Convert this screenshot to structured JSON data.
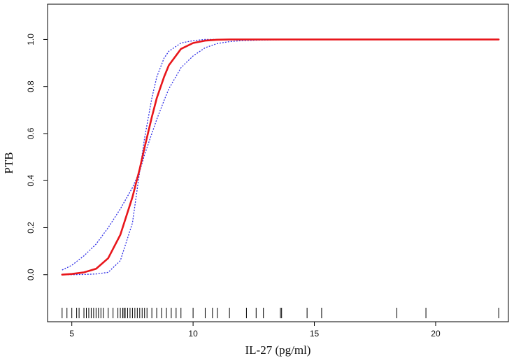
{
  "chart_data": {
    "type": "line",
    "title": "",
    "xlabel": "IL-27 (pg/ml)",
    "ylabel": "PTB",
    "xlim": [
      4.0,
      23.0
    ],
    "ylim": [
      -0.2,
      1.15
    ],
    "x_ticks": [
      5,
      10,
      15,
      20
    ],
    "y_ticks": [
      0.0,
      0.2,
      0.4,
      0.6,
      0.8,
      1.0
    ],
    "x_tick_labels": [
      "5",
      "10",
      "15",
      "20"
    ],
    "y_tick_labels": [
      "0.0",
      "0.2",
      "0.4",
      "0.6",
      "0.8",
      "1.0"
    ],
    "grid": false,
    "legend": "none",
    "colors": {
      "estimate": "#e8161b",
      "confidence_band": "#2e2ee6",
      "rug": "#000000",
      "frame": "#000000"
    },
    "series": [
      {
        "role": "estimate",
        "style": "solid",
        "x": [
          4.6,
          5.0,
          5.5,
          6.0,
          6.5,
          7.0,
          7.5,
          7.8,
          8.0,
          8.3,
          8.5,
          8.8,
          9.0,
          9.5,
          10.0,
          10.5,
          11.0,
          11.5,
          12.0,
          15.0,
          18.0,
          22.6
        ],
        "y": [
          0.0,
          0.003,
          0.01,
          0.025,
          0.07,
          0.17,
          0.33,
          0.45,
          0.54,
          0.67,
          0.75,
          0.84,
          0.89,
          0.96,
          0.985,
          0.995,
          0.999,
          1.0,
          1.0,
          1.0,
          1.0,
          1.0
        ]
      },
      {
        "role": "upper-confidence-bound",
        "style": "dotted",
        "x": [
          4.6,
          5.0,
          5.5,
          6.0,
          6.5,
          7.0,
          7.5,
          7.8,
          8.0,
          8.3,
          8.5,
          8.8,
          9.0,
          9.5,
          10.0,
          10.5,
          11.0,
          12.0,
          15.0,
          22.6
        ],
        "y": [
          0.02,
          0.04,
          0.08,
          0.13,
          0.2,
          0.28,
          0.37,
          0.44,
          0.58,
          0.75,
          0.84,
          0.92,
          0.95,
          0.985,
          0.995,
          1.0,
          1.0,
          1.0,
          1.0,
          1.0
        ]
      },
      {
        "role": "lower-confidence-bound",
        "style": "dotted",
        "x": [
          4.6,
          5.0,
          5.5,
          6.0,
          6.5,
          7.0,
          7.5,
          7.8,
          8.0,
          8.3,
          8.5,
          8.8,
          9.0,
          9.5,
          10.0,
          10.5,
          11.0,
          11.5,
          12.0,
          13.0,
          15.0,
          22.6
        ],
        "y": [
          0.0,
          0.0,
          0.001,
          0.003,
          0.01,
          0.06,
          0.22,
          0.44,
          0.51,
          0.6,
          0.66,
          0.74,
          0.79,
          0.88,
          0.93,
          0.965,
          0.983,
          0.991,
          0.995,
          0.998,
          1.0,
          1.0
        ]
      }
    ],
    "rug": [
      4.6,
      4.8,
      5.0,
      5.2,
      5.3,
      5.5,
      5.6,
      5.7,
      5.8,
      5.9,
      6.0,
      6.1,
      6.2,
      6.3,
      6.5,
      6.7,
      6.9,
      7.0,
      7.1,
      7.15,
      7.2,
      7.3,
      7.4,
      7.5,
      7.6,
      7.7,
      7.8,
      7.9,
      8.0,
      8.1,
      8.3,
      8.5,
      8.7,
      8.9,
      9.1,
      9.3,
      9.5,
      10.0,
      10.5,
      10.8,
      11.0,
      11.5,
      12.2,
      12.6,
      12.9,
      13.6,
      13.65,
      14.7,
      15.3,
      18.4,
      19.6,
      22.6
    ]
  }
}
